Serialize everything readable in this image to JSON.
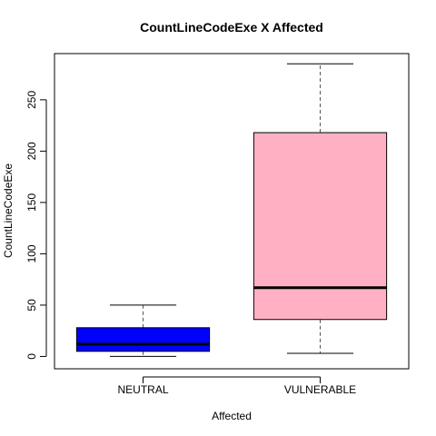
{
  "chart_data": {
    "type": "boxplot",
    "title": "CountLineCodeExe X Affected",
    "xlabel": "Affected",
    "ylabel": "CountLineCodeExe",
    "ylim": [
      -12,
      295
    ],
    "yticks": [
      0,
      50,
      100,
      150,
      200,
      250
    ],
    "grid": false,
    "legend": "none",
    "categories": [
      "NEUTRAL",
      "VULNERABLE"
    ],
    "boxes": [
      {
        "category": "NEUTRAL",
        "min": 0,
        "q1": 5,
        "median": 12,
        "q3": 28,
        "max": 50,
        "color": "#0000ff"
      },
      {
        "category": "VULNERABLE",
        "min": 3,
        "q1": 36,
        "median": 67,
        "q3": 218,
        "max": 285,
        "color": "#ffb1c3"
      }
    ]
  }
}
